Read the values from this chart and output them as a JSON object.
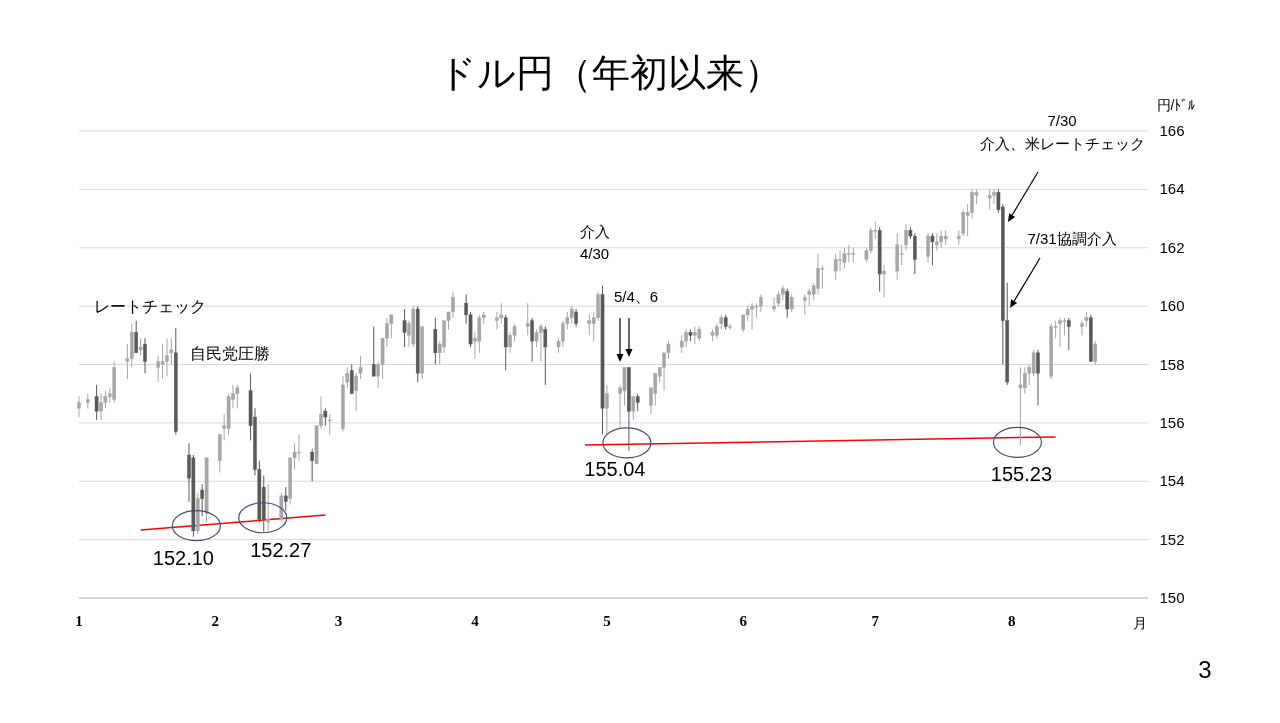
{
  "chart_data": {
    "type": "candlestick",
    "title": "ドル円（年初以来）",
    "xlabel": "月",
    "ylabel": "円/ﾄﾞﾙ",
    "x": [
      "--01-01",
      "--01-03",
      "--01-05",
      "--01-06",
      "--01-07",
      "--01-08",
      "--01-09",
      "--01-12",
      "--01-13",
      "--01-14",
      "--01-15",
      "--01-16",
      "--01-19",
      "--01-20",
      "--01-21",
      "--01-22",
      "--01-23",
      "--01-26",
      "--01-27",
      "--01-28",
      "--01-29",
      "--01-30",
      "--02-02",
      "--02-03",
      "--02-04",
      "--02-05",
      "--02-06",
      "--02-09",
      "--02-10",
      "--02-11",
      "--02-12",
      "--02-13",
      "--02-16",
      "--02-17",
      "--02-18",
      "--02-19",
      "--02-20",
      "--02-23",
      "--02-24",
      "--02-25",
      "--02-26",
      "--02-27",
      "--03-02",
      "--03-03",
      "--03-04",
      "--03-05",
      "--03-06",
      "--03-09",
      "--03-10",
      "--03-11",
      "--03-12",
      "--03-13",
      "--03-16",
      "--03-17",
      "--03-18",
      "--03-19",
      "--03-20",
      "--03-23",
      "--03-24",
      "--03-25",
      "--03-26",
      "--03-27",
      "--03-30",
      "--03-31",
      "--04-01",
      "--04-02",
      "--04-03",
      "--04-06",
      "--04-07",
      "--04-08",
      "--04-09",
      "--04-10",
      "--04-13",
      "--04-14",
      "--04-15",
      "--04-16",
      "--04-17",
      "--04-20",
      "--04-21",
      "--04-22",
      "--04-23",
      "--04-24",
      "--04-27",
      "--04-28",
      "--04-29",
      "--04-30",
      "--05-01",
      "--05-04",
      "--05-05",
      "--05-06",
      "--05-07",
      "--05-08",
      "--05-11",
      "--05-12",
      "--05-13",
      "--05-14",
      "--05-15",
      "--05-18",
      "--05-19",
      "--05-20",
      "--05-21",
      "--05-22",
      "--05-25",
      "--05-26",
      "--05-27",
      "--05-28",
      "--05-29",
      "--06-01",
      "--06-02",
      "--06-03",
      "--06-04",
      "--06-05",
      "--06-08",
      "--06-09",
      "--06-10",
      "--06-11",
      "--06-12",
      "--06-15",
      "--06-16",
      "--06-17",
      "--06-18",
      "--06-19",
      "--06-22",
      "--06-23",
      "--06-24",
      "--06-25",
      "--06-26",
      "--06-29",
      "--06-30",
      "--07-01",
      "--07-02",
      "--07-03",
      "--07-06",
      "--07-07",
      "--07-08",
      "--07-09",
      "--07-10",
      "--07-13",
      "--07-14",
      "--07-15",
      "--07-16",
      "--07-17",
      "--07-20",
      "--07-21",
      "--07-22",
      "--07-23",
      "--07-24",
      "--07-27",
      "--07-28",
      "--07-29",
      "--07-30",
      "--07-31",
      "--08-03",
      "--08-04",
      "--08-05",
      "--08-06",
      "--08-07",
      "--08-10",
      "--08-11",
      "--08-12",
      "--08-13",
      "--08-14",
      "--08-17",
      "--08-18",
      "--08-19",
      "--08-20"
    ],
    "ohlc": [
      [
        156.5,
        156.9,
        156.2,
        156.7
      ],
      [
        156.7,
        157.0,
        156.5,
        156.8
      ],
      [
        156.9,
        157.3,
        156.1,
        156.4
      ],
      [
        156.4,
        157.0,
        156.1,
        156.7
      ],
      [
        156.7,
        157.1,
        156.5,
        156.9
      ],
      [
        156.9,
        157.2,
        156.7,
        157.0
      ],
      [
        156.8,
        158.1,
        156.7,
        157.9
      ],
      [
        158.1,
        158.7,
        157.5,
        158.2
      ],
      [
        158.2,
        159.4,
        157.9,
        159.1
      ],
      [
        159.1,
        159.5,
        158.4,
        158.4
      ],
      [
        158.5,
        158.9,
        158.3,
        158.6
      ],
      [
        158.7,
        158.9,
        157.7,
        158.1
      ],
      [
        157.9,
        158.3,
        157.4,
        158.1
      ],
      [
        158.0,
        158.7,
        157.5,
        158.1
      ],
      [
        158.1,
        158.9,
        157.6,
        158.3
      ],
      [
        158.4,
        158.9,
        158.0,
        158.5
      ],
      [
        158.4,
        159.25,
        155.6,
        155.7
      ],
      [
        154.9,
        155.3,
        153.3,
        154.1
      ],
      [
        154.8,
        154.9,
        152.1,
        152.3
      ],
      [
        152.3,
        153.6,
        152.2,
        153.4
      ],
      [
        153.7,
        153.9,
        152.8,
        153.4
      ],
      [
        152.9,
        154.8,
        152.6,
        154.8
      ],
      [
        154.7,
        155.6,
        154.3,
        155.6
      ],
      [
        155.8,
        156.3,
        155.4,
        155.9
      ],
      [
        155.8,
        157.0,
        155.6,
        156.9
      ],
      [
        156.8,
        157.3,
        156.5,
        157.0
      ],
      [
        157.0,
        157.3,
        156.5,
        157.2
      ],
      [
        157.1,
        157.7,
        155.4,
        155.9
      ],
      [
        156.2,
        156.5,
        154.2,
        154.4
      ],
      [
        154.4,
        154.7,
        152.6,
        152.7
      ],
      [
        153.8,
        154.2,
        152.27,
        152.7
      ],
      [
        152.6,
        153.9,
        152.3,
        152.7
      ],
      [
        152.7,
        153.6,
        152.6,
        153.5
      ],
      [
        153.5,
        153.8,
        153.0,
        153.3
      ],
      [
        153.4,
        154.8,
        153.2,
        154.8
      ],
      [
        154.8,
        155.3,
        154.4,
        155.0
      ],
      [
        155.0,
        155.6,
        154.7,
        155.0
      ],
      [
        155.0,
        155.1,
        154.0,
        154.7
      ],
      [
        154.6,
        155.9,
        154.6,
        155.9
      ],
      [
        155.9,
        156.9,
        155.8,
        156.3
      ],
      [
        156.4,
        156.5,
        155.9,
        156.2
      ],
      [
        156.1,
        156.3,
        155.6,
        156.1
      ],
      [
        155.8,
        157.6,
        155.7,
        157.3
      ],
      [
        157.4,
        157.9,
        157.2,
        157.7
      ],
      [
        157.8,
        158.0,
        157.0,
        157.0
      ],
      [
        157.1,
        157.7,
        156.4,
        157.6
      ],
      [
        157.7,
        158.3,
        157.5,
        157.9
      ],
      [
        158.0,
        159.3,
        157.6,
        157.6
      ],
      [
        157.6,
        158.1,
        157.2,
        158.0
      ],
      [
        158.0,
        158.9,
        157.5,
        158.9
      ],
      [
        158.9,
        159.6,
        158.6,
        159.4
      ],
      [
        159.4,
        159.7,
        158.9,
        159.7
      ],
      [
        159.5,
        159.9,
        158.6,
        159.1
      ],
      [
        159.0,
        159.5,
        158.6,
        159.4
      ],
      [
        158.7,
        160.0,
        158.6,
        159.9
      ],
      [
        159.9,
        160.0,
        157.4,
        157.7
      ],
      [
        157.7,
        159.3,
        157.5,
        159.3
      ],
      [
        159.2,
        159.6,
        158.0,
        158.4
      ],
      [
        158.4,
        158.8,
        158.0,
        158.7
      ],
      [
        158.6,
        159.5,
        158.4,
        159.5
      ],
      [
        159.5,
        159.8,
        159.2,
        159.8
      ],
      [
        159.8,
        160.5,
        159.6,
        160.3
      ],
      [
        160.1,
        160.4,
        159.4,
        159.7
      ],
      [
        159.7,
        159.8,
        158.6,
        158.7
      ],
      [
        158.8,
        159.1,
        158.2,
        158.9
      ],
      [
        158.8,
        159.7,
        158.4,
        159.6
      ],
      [
        159.6,
        159.8,
        159.4,
        159.7
      ],
      [
        159.5,
        159.8,
        159.2,
        159.6
      ],
      [
        159.6,
        160.1,
        159.4,
        159.7
      ],
      [
        159.6,
        159.7,
        157.8,
        158.6
      ],
      [
        158.6,
        159.1,
        158.4,
        159.0
      ],
      [
        159.0,
        159.4,
        158.8,
        159.3
      ],
      [
        159.3,
        160.1,
        159.0,
        159.4
      ],
      [
        159.5,
        159.6,
        158.1,
        158.8
      ],
      [
        158.8,
        159.2,
        158.6,
        159.1
      ],
      [
        159.1,
        159.4,
        158.1,
        159.3
      ],
      [
        159.2,
        159.3,
        157.3,
        158.6
      ],
      [
        158.6,
        158.9,
        158.4,
        158.8
      ],
      [
        158.8,
        159.5,
        158.6,
        159.4
      ],
      [
        159.4,
        159.8,
        159.2,
        159.6
      ],
      [
        159.6,
        160.0,
        159.4,
        159.9
      ],
      [
        159.8,
        159.9,
        159.3,
        159.4
      ],
      [
        159.4,
        159.7,
        159.0,
        159.5
      ],
      [
        159.4,
        159.8,
        158.8,
        159.6
      ],
      [
        159.6,
        160.5,
        159.5,
        160.4
      ],
      [
        160.4,
        160.7,
        155.6,
        156.5
      ],
      [
        156.5,
        157.3,
        155.6,
        157.0
      ],
      [
        157.0,
        157.3,
        155.8,
        157.2
      ],
      [
        157.1,
        157.9,
        156.6,
        157.9
      ],
      [
        157.9,
        157.9,
        155.04,
        156.4
      ],
      [
        156.4,
        156.9,
        156.1,
        156.9
      ],
      [
        156.9,
        157.0,
        156.4,
        156.7
      ],
      [
        156.6,
        157.2,
        156.3,
        157.2
      ],
      [
        157.0,
        157.7,
        156.6,
        157.7
      ],
      [
        157.6,
        157.9,
        157.4,
        157.9
      ],
      [
        157.9,
        158.4,
        157.1,
        158.4
      ],
      [
        158.4,
        158.8,
        158.2,
        158.7
      ],
      [
        158.6,
        159.0,
        158.4,
        158.8
      ],
      [
        158.8,
        159.2,
        158.6,
        159.1
      ],
      [
        159.1,
        159.2,
        158.8,
        159.0
      ],
      [
        159.0,
        159.3,
        158.7,
        159.1
      ],
      [
        158.9,
        159.3,
        158.8,
        159.2
      ],
      [
        159.0,
        159.2,
        158.8,
        159.1
      ],
      [
        159.0,
        159.4,
        158.9,
        159.3
      ],
      [
        159.4,
        159.7,
        159.2,
        159.6
      ],
      [
        159.6,
        159.7,
        159.2,
        159.3
      ],
      [
        159.3,
        159.4,
        159.2,
        159.3
      ],
      [
        159.2,
        159.7,
        159.1,
        159.7
      ],
      [
        159.7,
        160.0,
        159.5,
        159.9
      ],
      [
        159.9,
        160.1,
        159.2,
        160.0
      ],
      [
        160.0,
        160.1,
        159.6,
        160.0
      ],
      [
        160.0,
        160.4,
        159.8,
        160.3
      ],
      [
        159.9,
        160.3,
        159.8,
        160.0
      ],
      [
        160.1,
        160.5,
        160.0,
        160.4
      ],
      [
        160.4,
        160.7,
        160.2,
        160.6
      ],
      [
        160.5,
        160.6,
        159.6,
        159.9
      ],
      [
        159.9,
        160.4,
        159.8,
        160.3
      ],
      [
        160.2,
        160.4,
        159.7,
        160.3
      ],
      [
        160.4,
        160.6,
        160.0,
        160.5
      ],
      [
        160.4,
        160.8,
        160.2,
        160.7
      ],
      [
        160.6,
        161.8,
        160.4,
        161.3
      ],
      [
        161.3,
        161.4,
        160.6,
        161.3
      ],
      [
        161.2,
        161.8,
        160.9,
        161.6
      ],
      [
        161.6,
        161.9,
        161.2,
        161.6
      ],
      [
        161.5,
        162.0,
        161.3,
        161.8
      ],
      [
        161.8,
        162.1,
        161.5,
        161.8
      ],
      [
        161.8,
        162.0,
        161.5,
        161.8
      ],
      [
        161.6,
        162.0,
        161.5,
        161.9
      ],
      [
        161.9,
        162.7,
        161.8,
        162.6
      ],
      [
        162.6,
        162.9,
        162.3,
        162.6
      ],
      [
        162.6,
        162.7,
        160.5,
        161.1
      ],
      [
        161.1,
        161.4,
        160.3,
        161.2
      ],
      [
        161.2,
        162.5,
        160.9,
        162.1
      ],
      [
        161.8,
        162.1,
        161.4,
        161.8
      ],
      [
        162.1,
        162.8,
        161.9,
        162.6
      ],
      [
        162.6,
        162.7,
        162.3,
        162.4
      ],
      [
        162.4,
        162.5,
        161.1,
        161.6
      ],
      [
        161.7,
        162.5,
        161.5,
        162.4
      ],
      [
        162.4,
        162.5,
        161.4,
        162.2
      ],
      [
        162.1,
        162.5,
        161.9,
        162.2
      ],
      [
        162.2,
        162.6,
        162.0,
        162.4
      ],
      [
        162.3,
        162.6,
        162.1,
        162.4
      ],
      [
        162.3,
        162.6,
        162.1,
        162.4
      ],
      [
        162.5,
        163.3,
        162.4,
        163.2
      ],
      [
        163.1,
        163.5,
        162.4,
        163.2
      ],
      [
        163.2,
        164.0,
        163.0,
        163.9
      ],
      [
        163.8,
        164.0,
        163.5,
        163.9
      ],
      [
        163.7,
        164.0,
        163.3,
        163.8
      ],
      [
        163.8,
        164.0,
        163.5,
        163.9
      ],
      [
        163.9,
        164.0,
        163.2,
        163.3
      ],
      [
        163.4,
        163.5,
        158.0,
        159.5
      ],
      [
        159.5,
        160.8,
        157.3,
        157.4
      ],
      [
        157.2,
        157.9,
        155.23,
        157.3
      ],
      [
        157.2,
        157.9,
        157.0,
        157.7
      ],
      [
        157.7,
        158.0,
        157.3,
        157.9
      ],
      [
        157.7,
        158.5,
        157.6,
        158.4
      ],
      [
        158.4,
        158.5,
        156.6,
        157.7
      ],
      [
        157.6,
        159.4,
        157.5,
        159.3
      ],
      [
        159.3,
        159.5,
        158.9,
        159.3
      ],
      [
        159.4,
        159.6,
        158.6,
        159.5
      ],
      [
        159.5,
        159.6,
        159.0,
        159.5
      ],
      [
        159.5,
        159.6,
        158.5,
        159.3
      ],
      [
        159.3,
        159.5,
        159.0,
        159.4
      ],
      [
        159.5,
        159.8,
        159.3,
        159.6
      ],
      [
        159.6,
        159.7,
        158.1,
        158.1
      ],
      [
        158.1,
        158.8,
        158.0,
        158.7
      ]
    ],
    "colors": [
      "#a6a6a6",
      "#a6a6a6",
      "#595959",
      "#a6a6a6",
      "#a6a6a6",
      "#a6a6a6",
      "#a6a6a6",
      "#a6a6a6",
      "#a6a6a6",
      "#595959",
      "#a6a6a6",
      "#595959",
      "#a6a6a6",
      "#a6a6a6",
      "#a6a6a6",
      "#a6a6a6",
      "#595959",
      "#595959",
      "#595959",
      "#a6a6a6",
      "#595959",
      "#a6a6a6",
      "#a6a6a6",
      "#a6a6a6",
      "#a6a6a6",
      "#a6a6a6",
      "#a6a6a6",
      "#595959",
      "#595959",
      "#595959",
      "#595959",
      "#a6a6a6",
      "#a6a6a6",
      "#595959",
      "#a6a6a6",
      "#a6a6a6",
      "#a6a6a6",
      "#595959",
      "#a6a6a6",
      "#a6a6a6",
      "#595959",
      "#a6a6a6",
      "#a6a6a6",
      "#a6a6a6",
      "#595959",
      "#a6a6a6",
      "#a6a6a6",
      "#595959",
      "#a6a6a6",
      "#a6a6a6",
      "#a6a6a6",
      "#a6a6a6",
      "#595959",
      "#a6a6a6",
      "#a6a6a6",
      "#595959",
      "#a6a6a6",
      "#595959",
      "#a6a6a6",
      "#a6a6a6",
      "#a6a6a6",
      "#a6a6a6",
      "#595959",
      "#595959",
      "#a6a6a6",
      "#a6a6a6",
      "#a6a6a6",
      "#a6a6a6",
      "#a6a6a6",
      "#595959",
      "#a6a6a6",
      "#a6a6a6",
      "#a6a6a6",
      "#595959",
      "#a6a6a6",
      "#a6a6a6",
      "#595959",
      "#a6a6a6",
      "#a6a6a6",
      "#a6a6a6",
      "#a6a6a6",
      "#595959",
      "#a6a6a6",
      "#a6a6a6",
      "#a6a6a6",
      "#595959",
      "#a6a6a6",
      "#a6a6a6",
      "#a6a6a6",
      "#595959",
      "#a6a6a6",
      "#595959",
      "#a6a6a6",
      "#a6a6a6",
      "#a6a6a6",
      "#a6a6a6",
      "#a6a6a6",
      "#a6a6a6",
      "#a6a6a6",
      "#595959",
      "#a6a6a6",
      "#a6a6a6",
      "#a6a6a6",
      "#a6a6a6",
      "#a6a6a6",
      "#595959",
      "#a6a6a6",
      "#a6a6a6",
      "#a6a6a6",
      "#a6a6a6",
      "#a6a6a6",
      "#a6a6a6",
      "#a6a6a6",
      "#a6a6a6",
      "#a6a6a6",
      "#595959",
      "#a6a6a6",
      "#a6a6a6",
      "#a6a6a6",
      "#a6a6a6",
      "#a6a6a6",
      "#a6a6a6",
      "#a6a6a6",
      "#a6a6a6",
      "#a6a6a6",
      "#a6a6a6",
      "#a6a6a6",
      "#a6a6a6",
      "#a6a6a6",
      "#a6a6a6",
      "#595959",
      "#a6a6a6",
      "#a6a6a6",
      "#a6a6a6",
      "#a6a6a6",
      "#595959",
      "#595959",
      "#a6a6a6",
      "#595959",
      "#a6a6a6",
      "#a6a6a6",
      "#a6a6a6",
      "#a6a6a6",
      "#a6a6a6",
      "#a6a6a6",
      "#a6a6a6",
      "#a6a6a6",
      "#a6a6a6",
      "#a6a6a6",
      "#595959",
      "#595959",
      "#595959",
      "#a6a6a6",
      "#a6a6a6",
      "#a6a6a6",
      "#a6a6a6",
      "#595959",
      "#a6a6a6",
      "#a6a6a6",
      "#a6a6a6",
      "#a6a6a6",
      "#595959",
      "#a6a6a6",
      "#a6a6a6",
      "#595959",
      "#a6a6a6"
    ],
    "series": [
      {
        "type": "line",
        "color": "#ff0000",
        "x": [
          "--01-15",
          "--02-26"
        ],
        "values": [
          152.33,
          152.84
        ]
      },
      {
        "type": "line",
        "color": "#ff0000",
        "x": [
          "--04-26",
          "--08-11"
        ],
        "values": [
          155.24,
          155.52
        ]
      }
    ],
    "xlim": [
      "--01-01",
      "--09-01"
    ],
    "xticks": [
      {
        "value": "--01-01",
        "label": "1"
      },
      {
        "value": "--02-01",
        "label": "2"
      },
      {
        "value": "--03-01",
        "label": "3"
      },
      {
        "value": "--04-01",
        "label": "4"
      },
      {
        "value": "--05-01",
        "label": "5"
      },
      {
        "value": "--06-01",
        "label": "6"
      },
      {
        "value": "--07-01",
        "label": "7"
      },
      {
        "value": "--08-01",
        "label": "8"
      }
    ],
    "ylim": [
      150,
      166
    ],
    "yticks": [
      150,
      152,
      154,
      156,
      158,
      160,
      162,
      164,
      166
    ],
    "grid": "y",
    "annotations": [
      {
        "text": "レートチェック",
        "x": "--01-23",
        "y": 159.25
      },
      {
        "text": "自民党圧勝",
        "x": "--02-09",
        "y": 157.7
      },
      {
        "text": "介入\n4/30",
        "x": "--04-30",
        "y": 160.7
      },
      "5/4、6",
      "7/30\n介入、米レートチェック",
      "7/31協調介入",
      {
        "text": "152.10",
        "x": "--01-27",
        "y": 152.1
      },
      {
        "text": "152.27",
        "x": "--02-12",
        "y": 152.27
      },
      {
        "text": "155.04",
        "x": "--05-06",
        "y": 155.04
      },
      {
        "text": "155.23",
        "x": "--08-03",
        "y": 155.23
      },
      "3"
    ]
  }
}
